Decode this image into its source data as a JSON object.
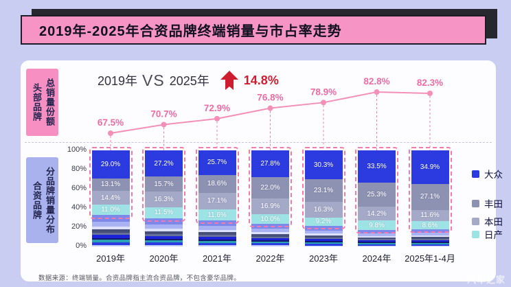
{
  "banner": {
    "title": "2019年-2025年合资品牌终端销量与市占率走势",
    "bg": "#f794c6"
  },
  "sidebar": {
    "head_brands": {
      "primary": "总销量份额",
      "secondary": "头部品牌",
      "bg": "#f78fc3"
    },
    "jv_brands": {
      "primary": "分品牌销量分布",
      "secondary": "合资品牌",
      "bg": "#aab2ee"
    }
  },
  "comparison": {
    "year_left": "2019年",
    "vs": "VS",
    "year_right": "2025年",
    "delta": "14.8%"
  },
  "colors": {
    "page_bg": "#c9cdf1",
    "card_bg": "#fdfdff",
    "banner_pink": "#f794c6",
    "line_pink": "#f48fb8",
    "line_label_pink": "#ee6ba5",
    "highlight_dash_pink": "#f27bae",
    "delta_red": "#ce1d2e"
  },
  "chart_data": [
    {
      "type": "line",
      "title": "头部品牌总销量份额",
      "x": [
        "2019年",
        "2020年",
        "2021年",
        "2022年",
        "2023年",
        "2024年",
        "2025年1-4月"
      ],
      "values": [
        67.5,
        70.7,
        72.9,
        76.8,
        78.9,
        82.8,
        82.3
      ],
      "unit": "%",
      "ylim": [
        60,
        90
      ],
      "grid": false,
      "line_color": "#f48fb8",
      "label_color": "#ee6ba5",
      "notes": "value labels shown above each point; dashed drop lines to bars"
    },
    {
      "type": "bar",
      "stacked": true,
      "title": "合资品牌分品牌销量分布",
      "categories": [
        "2019年",
        "2020年",
        "2021年",
        "2022年",
        "2023年",
        "2024年",
        "2025年1-4月"
      ],
      "series": [
        {
          "name": "大众",
          "color": "#2c3be0",
          "values": [
            29.0,
            27.2,
            25.7,
            27.8,
            30.3,
            33.5,
            34.9
          ]
        },
        {
          "name": "丰田",
          "color": "#8d92b2",
          "values": [
            13.1,
            15.7,
            18.6,
            22.0,
            23.1,
            25.3,
            27.1
          ]
        },
        {
          "name": "本田",
          "color": "#a4a9c8",
          "values": [
            14.4,
            16.3,
            17.1,
            16.9,
            16.3,
            14.2,
            11.6
          ]
        },
        {
          "name": "日产",
          "color": "#9de2e4",
          "values": [
            11.0,
            11.5,
            11.6,
            10.0,
            9.2,
            9.8,
            8.6
          ]
        },
        {
          "name": "其他合资品牌(未标注)",
          "color": "striped",
          "values": [
            32.5,
            29.3,
            27.0,
            23.3,
            21.1,
            17.2,
            17.8
          ]
        }
      ],
      "others_pattern": [
        {
          "color": "#7d88ea",
          "weight": 7
        },
        {
          "color": "#a9b2f2",
          "weight": 5
        },
        {
          "color": "#dde1fb",
          "weight": 3
        },
        {
          "color": "#454f78",
          "weight": 3.5
        },
        {
          "color": "#67719c",
          "weight": 2.5
        },
        {
          "color": "#1c22d8",
          "weight": 3
        },
        {
          "color": "#15196e",
          "weight": 2
        },
        {
          "color": "#2aa3b2",
          "weight": 2.5
        },
        {
          "color": "#2b3de0",
          "weight": 3
        },
        {
          "color": "#c9cff8",
          "weight": 1.5
        }
      ],
      "y_ticks": [
        "100%",
        "80%",
        "60%",
        "40%",
        "20%",
        "0%"
      ],
      "ylim": [
        0,
        100
      ],
      "unit": "%",
      "legend": [
        "大众",
        "丰田",
        "本田",
        "日产"
      ],
      "legend_position": "right"
    }
  ],
  "footer": {
    "note": "数据来源：终端销量。合资品牌指主流合资品牌，不包含豪华品牌。"
  },
  "page": {
    "watermark": "汽车之家"
  }
}
